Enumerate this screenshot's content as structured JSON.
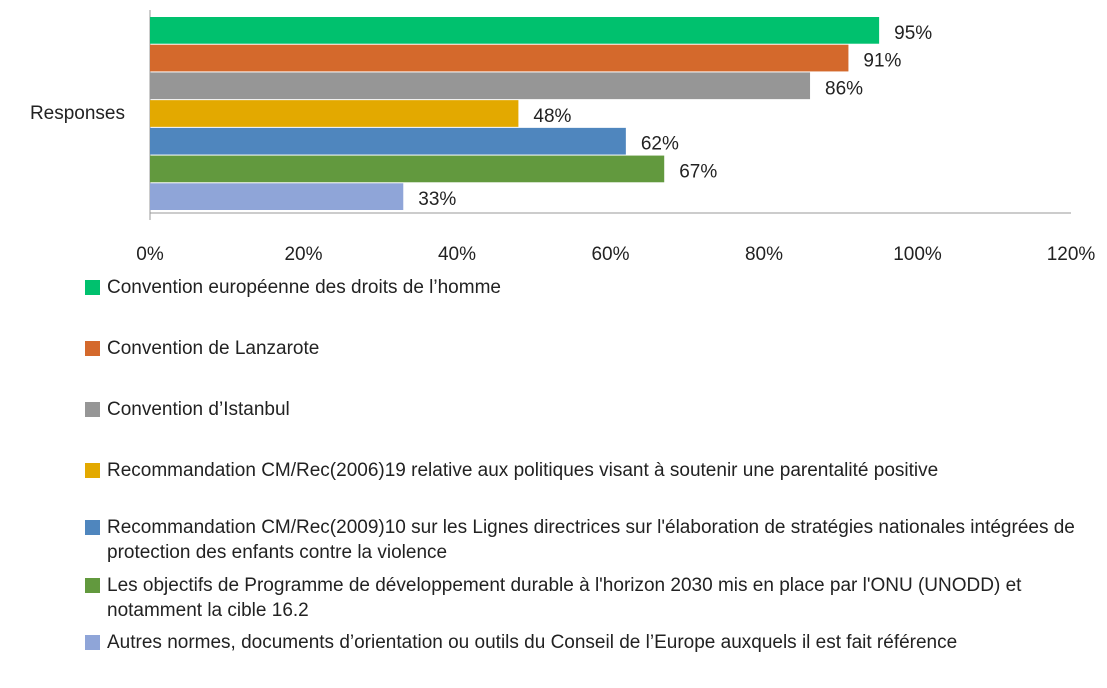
{
  "chart_data": {
    "type": "bar",
    "orientation": "horizontal",
    "categories": [
      "Responses"
    ],
    "series": [
      {
        "name": "Convention européenne des droits de l’homme",
        "color": "#00c16e",
        "values": [
          95
        ],
        "value_labels": [
          "95%"
        ]
      },
      {
        "name": "Convention de Lanzarote",
        "color": "#d4692c",
        "values": [
          91
        ],
        "value_labels": [
          "91%"
        ]
      },
      {
        "name": "Convention d’Istanbul",
        "color": "#969696",
        "values": [
          86
        ],
        "value_labels": [
          "86%"
        ]
      },
      {
        "name": "Recommandation CM/Rec(2006)19 relative aux politiques visant à soutenir une parentalité positive",
        "color": "#e3a900",
        "values": [
          48
        ],
        "value_labels": [
          "48%"
        ]
      },
      {
        "name": "Recommandation CM/Rec(2009)10 sur les Lignes directrices sur l'élaboration de stratégies nationales intégrées de protection des enfants contre la violence",
        "color": "#4f86be",
        "values": [
          62
        ],
        "value_labels": [
          "62%"
        ]
      },
      {
        "name": "Les objectifs de Programme de développement durable à l'horizon 2030 mis en place par l'ONU (UNODD) et notamment la cible 16.2",
        "color": "#62993e",
        "values": [
          67
        ],
        "value_labels": [
          "67%"
        ]
      },
      {
        "name": "Autres normes, documents d’orientation ou outils du Conseil de l’Europe auxquels il est fait référence",
        "color": "#8fa5d8",
        "values": [
          33
        ],
        "value_labels": [
          "33%"
        ]
      }
    ],
    "xlim": [
      0,
      120
    ],
    "xticks": [
      {
        "value": 0,
        "label": "0%"
      },
      {
        "value": 20,
        "label": "20%"
      },
      {
        "value": 40,
        "label": "40%"
      },
      {
        "value": 60,
        "label": "60%"
      },
      {
        "value": 80,
        "label": "80%"
      },
      {
        "value": 100,
        "label": "100%"
      },
      {
        "value": 120,
        "label": "120%"
      }
    ],
    "grid": false,
    "legend": "bottom"
  }
}
